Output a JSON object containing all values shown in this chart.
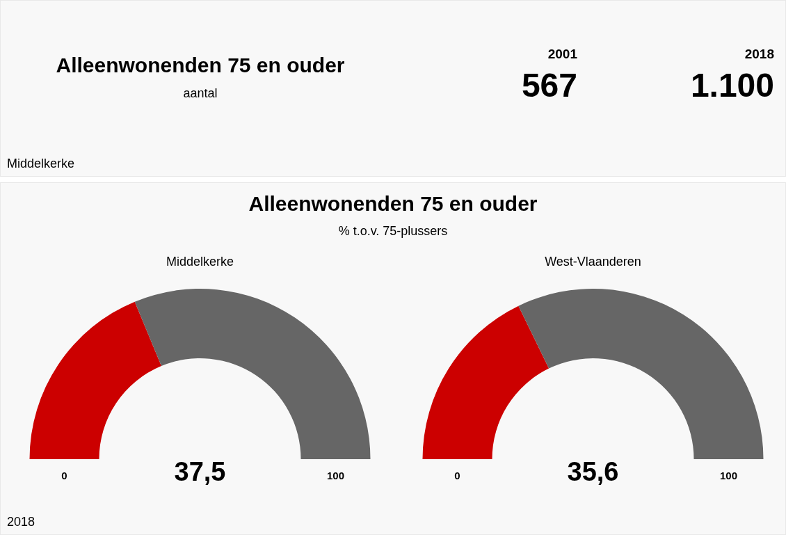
{
  "chart_data": [
    {
      "type": "other",
      "title": "Alleenwonenden 75 en ouder",
      "subtitle": "aantal",
      "categories": [
        "2001",
        "2018"
      ],
      "value_labels": [
        "567",
        "1.100"
      ],
      "annotations": [
        "Middelkerke"
      ]
    },
    {
      "type": "other",
      "title": "Alleenwonenden 75 en ouder",
      "subtitle": "% t.o.v. 75-plussers",
      "annotations": [
        "2018"
      ]
    },
    {
      "type": "donut",
      "title": "Middelkerke",
      "categories": [
        null,
        null
      ],
      "values": [
        37.5,
        62.5
      ],
      "colors": [
        "#cc0000",
        "#666666"
      ],
      "annotations": [
        "0",
        "100",
        "37,5"
      ]
    },
    {
      "type": "donut",
      "title": "West-Vlaanderen",
      "categories": [
        null,
        null
      ],
      "values": [
        35.6,
        64.4
      ],
      "colors": [
        "#cc0000",
        "#666666"
      ],
      "annotations": [
        "0",
        "100",
        "35,6"
      ]
    }
  ]
}
